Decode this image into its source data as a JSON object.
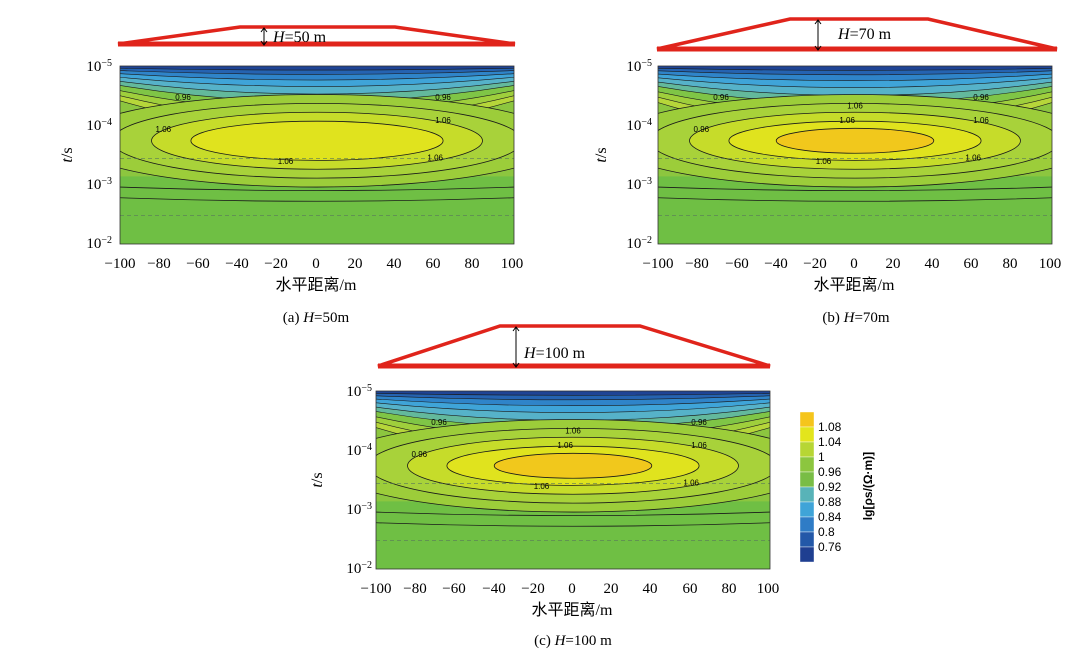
{
  "chart_data": [
    {
      "type": "heatmap",
      "caption_letter": "(a) ",
      "caption_H": "H",
      "caption_value": "=50m",
      "xlabel": "水平距离/m",
      "ylabel_t": "t",
      "ylabel_s": "/s",
      "xlim": [
        -100,
        100
      ],
      "ylim": [
        1e-05,
        0.01
      ],
      "y_scale": "log",
      "x_ticks": [
        "−100",
        "−80",
        "−60",
        "−40",
        "−20",
        "0",
        "20",
        "40",
        "60",
        "80",
        "100"
      ],
      "y_ticks": [
        {
          "base": "10",
          "exp": "−5"
        },
        {
          "base": "10",
          "exp": "−4"
        },
        {
          "base": "10",
          "exp": "−3"
        },
        {
          "base": "10",
          "exp": "−2"
        }
      ],
      "model_label_H": "H",
      "model_label_value": "=50 m",
      "embankment_height_m": 50,
      "max_level": 1.06,
      "contour_labels": [
        "0.96",
        "0.96",
        "1.06",
        "1.06",
        "1.06",
        "1.06"
      ]
    },
    {
      "type": "heatmap",
      "caption_letter": "(b) ",
      "caption_H": "H",
      "caption_value": "=70m",
      "xlabel": "水平距离/m",
      "ylabel_t": "t",
      "ylabel_s": "/s",
      "xlim": [
        -100,
        100
      ],
      "ylim": [
        1e-05,
        0.01
      ],
      "y_scale": "log",
      "x_ticks": [
        "−100",
        "−80",
        "−60",
        "−40",
        "−20",
        "0",
        "20",
        "40",
        "60",
        "80",
        "100"
      ],
      "y_ticks": [
        {
          "base": "10",
          "exp": "−5"
        },
        {
          "base": "10",
          "exp": "−4"
        },
        {
          "base": "10",
          "exp": "−3"
        },
        {
          "base": "10",
          "exp": "−2"
        }
      ],
      "model_label_H": "H",
      "model_label_value": "=70 m",
      "embankment_height_m": 70,
      "max_level": 1.08,
      "contour_labels": [
        "0.96",
        "0.96",
        "0.96",
        "1.06",
        "1.06",
        "1.06",
        "1.06",
        "1.06"
      ]
    },
    {
      "type": "heatmap",
      "caption_letter": "(c) ",
      "caption_H": "H",
      "caption_value": "=100 m",
      "xlabel": "水平距离/m",
      "ylabel_t": "t",
      "ylabel_s": "/s",
      "xlim": [
        -100,
        100
      ],
      "ylim": [
        1e-05,
        0.01
      ],
      "y_scale": "log",
      "x_ticks": [
        "−100",
        "−80",
        "−60",
        "−40",
        "−20",
        "0",
        "20",
        "40",
        "60",
        "80",
        "100"
      ],
      "y_ticks": [
        {
          "base": "10",
          "exp": "−5"
        },
        {
          "base": "10",
          "exp": "−4"
        },
        {
          "base": "10",
          "exp": "−3"
        },
        {
          "base": "10",
          "exp": "−2"
        }
      ],
      "model_label_H": "H",
      "model_label_value": "=100 m",
      "embankment_height_m": 100,
      "max_level": 1.08,
      "contour_labels": [
        "0.96",
        "0.96",
        "0.96",
        "1.06",
        "1.06",
        "1.06",
        "1.06",
        "1.06"
      ]
    }
  ],
  "colorbar": {
    "title": "lg[ρs/(Ω·m)]",
    "levels": [
      "1.08",
      "1.04",
      "1",
      "0.96",
      "0.92",
      "0.88",
      "0.84",
      "0.8",
      "0.76"
    ],
    "colors": [
      "#f5c51c",
      "#e3e51c",
      "#b7d634",
      "#8cc63f",
      "#79bd45",
      "#58b3b8",
      "#3fa4d8",
      "#2f7cc6",
      "#2358a8",
      "#1f3f91"
    ]
  }
}
